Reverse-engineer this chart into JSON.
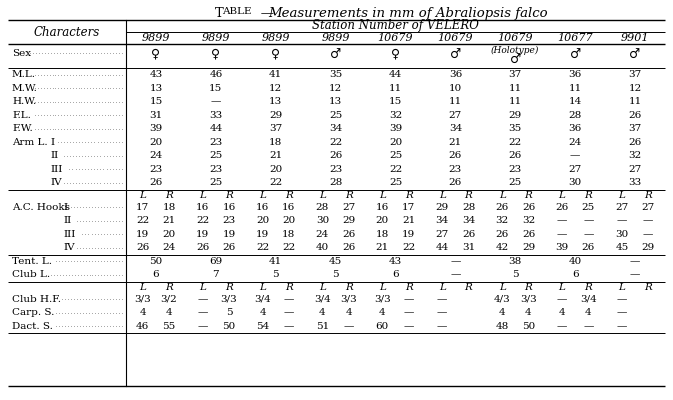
{
  "title_smallcaps": "TABLE",
  "title_rest": "   —",
  "title_italic": "Measurements in mm of Abraliopsis falco",
  "station_header": "Station Number of VELERO",
  "col_numbers": [
    "9899",
    "9899",
    "9899",
    "9899",
    "10679",
    "10679",
    "10679",
    "10677",
    "9901"
  ],
  "sex_symbols": [
    "♀",
    "♀",
    "♀",
    "♂",
    "♀",
    "♂",
    "♂",
    "♂",
    "♂"
  ],
  "holotype_col": 6,
  "simple_rows": [
    [
      "M.L.",
      "43",
      "46",
      "41",
      "35",
      "44",
      "36",
      "37",
      "36",
      "37"
    ],
    [
      "M.W.",
      "13",
      "15",
      "12",
      "12",
      "11",
      "10",
      "11",
      "11",
      "12"
    ],
    [
      "H.W.",
      "15",
      "—",
      "13",
      "13",
      "15",
      "11",
      "11",
      "14",
      "11"
    ],
    [
      "F.L.",
      "31",
      "33",
      "29",
      "25",
      "32",
      "27",
      "29",
      "28",
      "26"
    ],
    [
      "F.W.",
      "39",
      "44",
      "37",
      "34",
      "39",
      "34",
      "35",
      "36",
      "37"
    ]
  ],
  "arm_rows": [
    [
      "Arm L.",
      "I",
      "20",
      "23",
      "18",
      "22",
      "20",
      "21",
      "22",
      "24",
      "26"
    ],
    [
      "",
      "II",
      "24",
      "25",
      "21",
      "26",
      "25",
      "26",
      "26",
      "—",
      "32"
    ],
    [
      "",
      "III",
      "23",
      "23",
      "20",
      "23",
      "22",
      "23",
      "23",
      "27",
      "27"
    ],
    [
      "",
      "IV",
      "26",
      "25",
      "22",
      "28",
      "25",
      "26",
      "25",
      "30",
      "33"
    ]
  ],
  "ac_rows": [
    [
      "A.C. Hooks",
      "I",
      "17",
      "18",
      "16",
      "16",
      "16",
      "16",
      "28",
      "27",
      "16",
      "17",
      "29",
      "28",
      "26",
      "26",
      "26",
      "25",
      "27",
      "27"
    ],
    [
      "",
      "II",
      "22",
      "21",
      "22",
      "23",
      "20",
      "20",
      "30",
      "29",
      "20",
      "21",
      "34",
      "34",
      "32",
      "32",
      "—",
      "—",
      "—",
      "—"
    ],
    [
      "",
      "III",
      "19",
      "20",
      "19",
      "19",
      "19",
      "18",
      "24",
      "26",
      "18",
      "19",
      "27",
      "26",
      "26",
      "26",
      "—",
      "—",
      "30",
      "—"
    ],
    [
      "",
      "IV",
      "26",
      "24",
      "26",
      "26",
      "22",
      "22",
      "40",
      "26",
      "21",
      "22",
      "44",
      "31",
      "42",
      "29",
      "39",
      "26",
      "45",
      "29"
    ]
  ],
  "tent_club_rows": [
    [
      "Tent. L.",
      "50",
      "69",
      "41",
      "45",
      "43",
      "—",
      "38",
      "40",
      "—"
    ],
    [
      "Club L.",
      "6",
      "7",
      "5",
      "5",
      "6",
      "—",
      "5",
      "6",
      "—"
    ]
  ],
  "club_hf_rows": [
    [
      "Club H.F.",
      "3/3",
      "3/2",
      "—",
      "3/3",
      "3/4",
      "—",
      "3/4",
      "3/3",
      "3/3",
      "—",
      "—",
      "",
      "4/3",
      "3/3",
      "—",
      "3/4",
      "—",
      ""
    ],
    [
      "Carp. S.",
      "4",
      "4",
      "—",
      "5",
      "4",
      "—",
      "4",
      "4",
      "4",
      "—",
      "—",
      "",
      "4",
      "4",
      "4",
      "4",
      "—",
      ""
    ],
    [
      "Dact. S.",
      "46",
      "55",
      "—",
      "50",
      "54",
      "—",
      "51",
      "—",
      "60",
      "—",
      "—",
      "",
      "48",
      "50",
      "—",
      "—",
      "—",
      ""
    ]
  ]
}
